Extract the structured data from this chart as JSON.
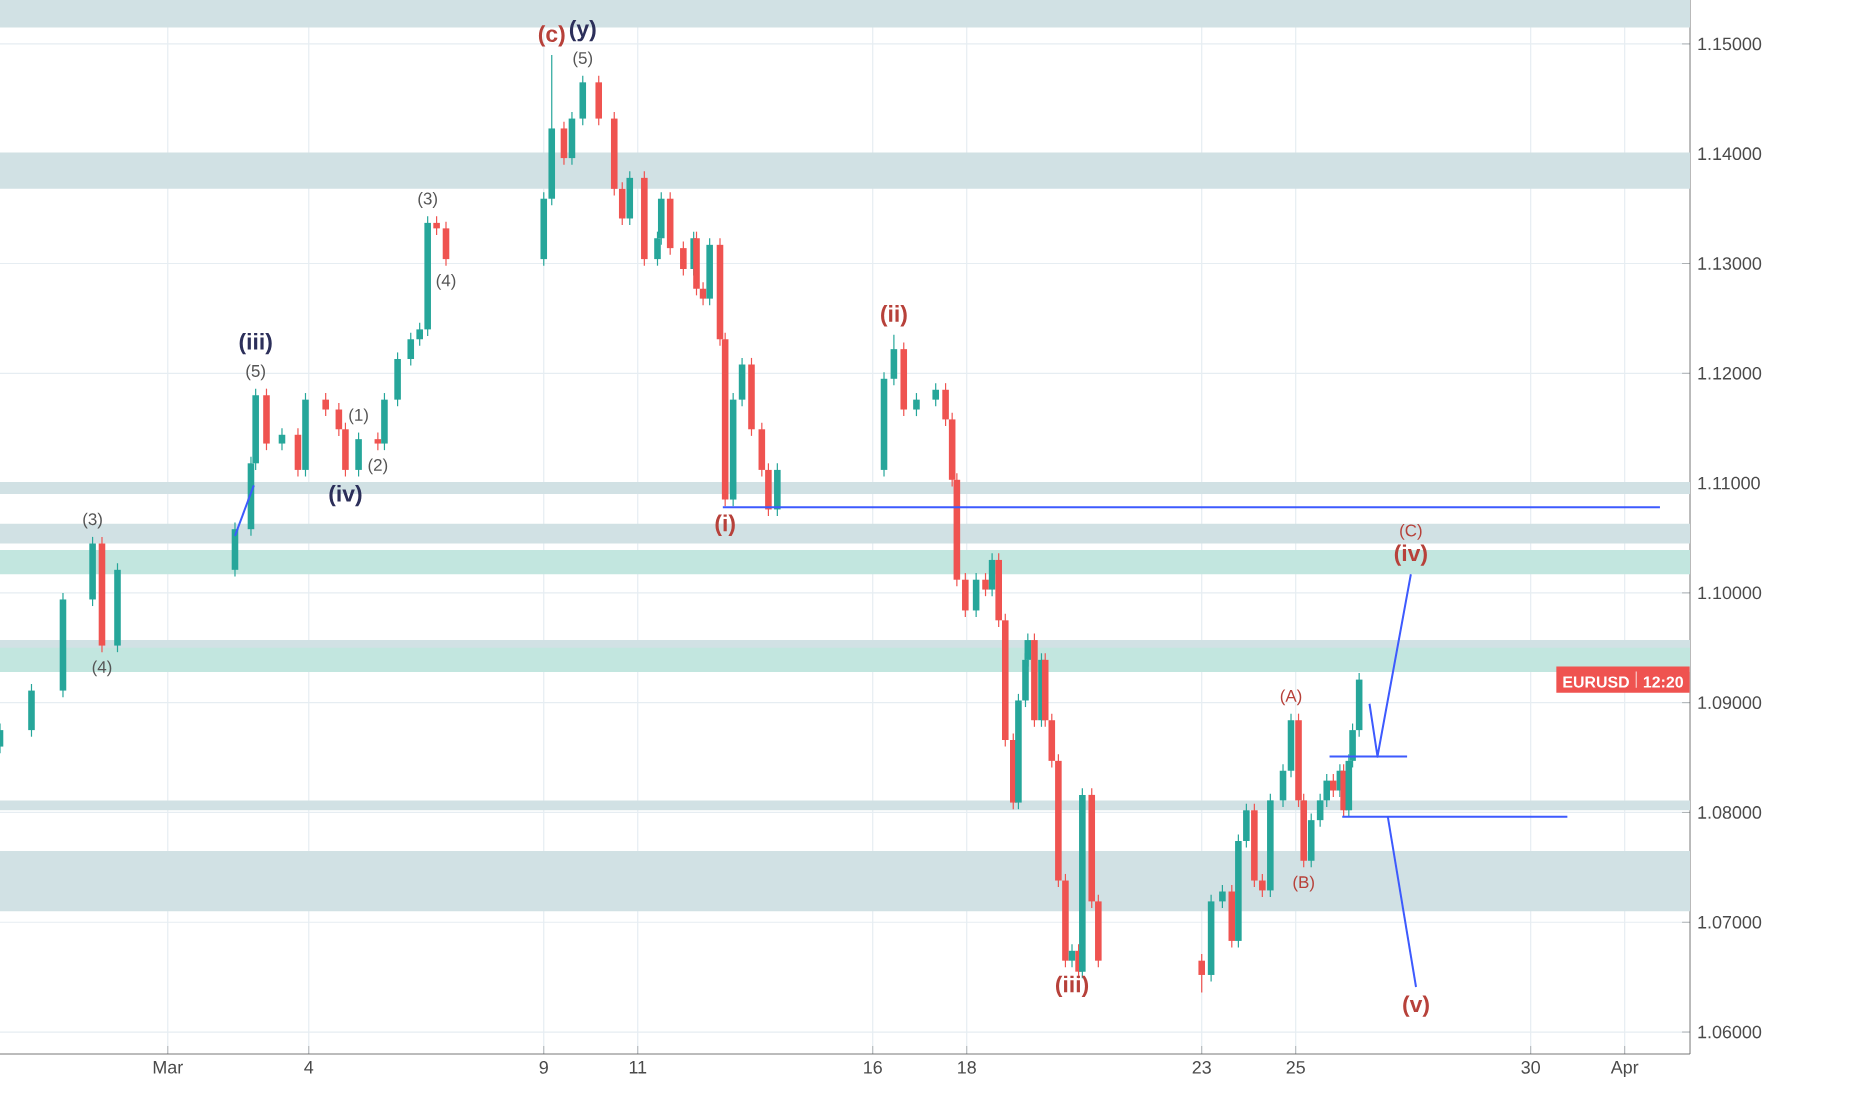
{
  "chart_data": {
    "type": "candlestick",
    "x": [
      -2.57,
      -1.9,
      -1.23,
      -0.6,
      -0.4,
      -0.07,
      2.43,
      2.77,
      2.87,
      3.1,
      3.43,
      3.77,
      3.93,
      4.36,
      4.64,
      4.78,
      5.06,
      5.47,
      5.61,
      5.89,
      6.17,
      6.36,
      6.53,
      6.72,
      6.92,
      9.0,
      9.17,
      9.43,
      9.6,
      9.83,
      10.17,
      10.5,
      10.67,
      10.83,
      11.14,
      11.42,
      11.5,
      11.69,
      11.97,
      12.19,
      12.25,
      12.39,
      12.53,
      12.75,
      12.86,
      13.03,
      13.22,
      13.42,
      13.64,
      13.78,
      13.97,
      16.24,
      16.45,
      16.66,
      16.93,
      17.34,
      17.55,
      17.69,
      17.79,
      17.97,
      18.2,
      18.4,
      18.54,
      18.68,
      18.82,
      18.99,
      19.1,
      19.25,
      19.3,
      19.44,
      19.59,
      19.67,
      19.81,
      19.95,
      20.1,
      20.24,
      20.38,
      20.46,
      20.66,
      20.8,
      23.0,
      23.2,
      23.44,
      23.64,
      23.78,
      23.95,
      24.12,
      24.29,
      24.46,
      24.73,
      24.9,
      25.06,
      25.17,
      25.33,
      25.52,
      25.66,
      25.8,
      25.94,
      26.02,
      26.13,
      26.21,
      26.35
    ],
    "ohlc": [
      [
        1.086,
        1.0881,
        1.0854,
        1.0875
      ],
      [
        1.0875,
        1.0917,
        1.0869,
        1.0911
      ],
      [
        1.0911,
        1.1,
        1.0905,
        1.0994
      ],
      [
        1.0994,
        1.1051,
        1.0988,
        1.1045
      ],
      [
        1.1045,
        1.1051,
        1.0946,
        1.0952
      ],
      [
        1.0952,
        1.1027,
        1.0946,
        1.1021
      ],
      [
        1.1021,
        1.1064,
        1.1015,
        1.1058
      ],
      [
        1.1058,
        1.1124,
        1.1052,
        1.1118
      ],
      [
        1.1118,
        1.1186,
        1.1112,
        1.118
      ],
      [
        1.118,
        1.1186,
        1.113,
        1.1136
      ],
      [
        1.1136,
        1.115,
        1.113,
        1.1144
      ],
      [
        1.1144,
        1.115,
        1.1106,
        1.1112
      ],
      [
        1.1112,
        1.1182,
        1.1106,
        1.1176
      ],
      [
        1.1176,
        1.1182,
        1.1161,
        1.1167
      ],
      [
        1.1167,
        1.1173,
        1.1143,
        1.1149
      ],
      [
        1.1149,
        1.1155,
        1.1106,
        1.1112
      ],
      [
        1.1112,
        1.1146,
        1.1106,
        1.114
      ],
      [
        1.114,
        1.1146,
        1.113,
        1.1136
      ],
      [
        1.1136,
        1.1182,
        1.113,
        1.1176
      ],
      [
        1.1176,
        1.1219,
        1.117,
        1.1213
      ],
      [
        1.1213,
        1.1237,
        1.1207,
        1.1231
      ],
      [
        1.1231,
        1.1246,
        1.1225,
        1.124
      ],
      [
        1.124,
        1.1343,
        1.1234,
        1.1337
      ],
      [
        1.1337,
        1.1343,
        1.1326,
        1.1332
      ],
      [
        1.1332,
        1.1338,
        1.1298,
        1.1304
      ],
      [
        1.1304,
        1.1365,
        1.1298,
        1.1359
      ],
      [
        1.1359,
        1.149,
        1.1353,
        1.1423
      ],
      [
        1.1423,
        1.1429,
        1.139,
        1.1396
      ],
      [
        1.1396,
        1.1438,
        1.139,
        1.1432
      ],
      [
        1.1432,
        1.1471,
        1.1426,
        1.1465
      ],
      [
        1.1465,
        1.1471,
        1.1426,
        1.1432
      ],
      [
        1.1432,
        1.1438,
        1.1362,
        1.1368
      ],
      [
        1.1368,
        1.1374,
        1.1335,
        1.1341
      ],
      [
        1.1341,
        1.1384,
        1.1335,
        1.1378
      ],
      [
        1.1378,
        1.1384,
        1.1298,
        1.1304
      ],
      [
        1.1304,
        1.1329,
        1.1298,
        1.1323
      ],
      [
        1.1323,
        1.1365,
        1.1317,
        1.1359
      ],
      [
        1.1359,
        1.1365,
        1.1308,
        1.1314
      ],
      [
        1.1314,
        1.132,
        1.1289,
        1.1295
      ],
      [
        1.1295,
        1.1329,
        1.1289,
        1.1323
      ],
      [
        1.1323,
        1.1329,
        1.1271,
        1.1277
      ],
      [
        1.1277,
        1.1283,
        1.1262,
        1.1268
      ],
      [
        1.1268,
        1.1323,
        1.1262,
        1.1317
      ],
      [
        1.1317,
        1.1323,
        1.1225,
        1.1231
      ],
      [
        1.1231,
        1.1237,
        1.1079,
        1.1085
      ],
      [
        1.1085,
        1.1182,
        1.1079,
        1.1176
      ],
      [
        1.1176,
        1.1214,
        1.117,
        1.1208
      ],
      [
        1.1208,
        1.1214,
        1.1143,
        1.1149
      ],
      [
        1.1149,
        1.1155,
        1.1106,
        1.1112
      ],
      [
        1.1112,
        1.1118,
        1.107,
        1.1076
      ],
      [
        1.1076,
        1.1118,
        1.107,
        1.1112
      ],
      [
        1.1112,
        1.1201,
        1.1106,
        1.1195
      ],
      [
        1.1195,
        1.1235,
        1.1189,
        1.1222
      ],
      [
        1.1222,
        1.1228,
        1.1161,
        1.1167
      ],
      [
        1.1167,
        1.1182,
        1.1161,
        1.1176
      ],
      [
        1.1176,
        1.1191,
        1.117,
        1.1185
      ],
      [
        1.1185,
        1.1191,
        1.1152,
        1.1158
      ],
      [
        1.1158,
        1.1164,
        1.1097,
        1.1103
      ],
      [
        1.1103,
        1.1109,
        1.1006,
        1.1012
      ],
      [
        1.1012,
        1.1018,
        1.0978,
        1.0984
      ],
      [
        1.0984,
        1.1018,
        1.0978,
        1.1012
      ],
      [
        1.1012,
        1.1018,
        1.0997,
        1.1003
      ],
      [
        1.1003,
        1.1036,
        1.0997,
        1.103
      ],
      [
        1.103,
        1.1036,
        1.0969,
        1.0975
      ],
      [
        1.0975,
        1.0981,
        1.086,
        1.0866
      ],
      [
        1.0866,
        1.0872,
        1.0803,
        1.0809
      ],
      [
        1.0809,
        1.0908,
        1.0803,
        1.0902
      ],
      [
        1.0902,
        1.0945,
        1.0896,
        1.0939
      ],
      [
        1.0939,
        1.0963,
        1.0933,
        1.0957
      ],
      [
        1.0957,
        1.0963,
        1.0878,
        1.0884
      ],
      [
        1.0884,
        1.0945,
        1.0878,
        1.0939
      ],
      [
        1.0939,
        1.0945,
        1.0878,
        1.0884
      ],
      [
        1.0884,
        1.089,
        1.0841,
        1.0847
      ],
      [
        1.0847,
        1.0853,
        1.0732,
        1.0738
      ],
      [
        1.0738,
        1.0744,
        1.0659,
        1.0665
      ],
      [
        1.0665,
        1.068,
        1.0659,
        1.0674
      ],
      [
        1.0674,
        1.068,
        1.0649,
        1.0655
      ],
      [
        1.0655,
        1.0822,
        1.0649,
        1.0816
      ],
      [
        1.0816,
        1.0822,
        1.0713,
        1.0719
      ],
      [
        1.0719,
        1.0725,
        1.0659,
        1.0665
      ],
      [
        1.0665,
        1.0671,
        1.0636,
        1.0652
      ],
      [
        1.0652,
        1.0725,
        1.0646,
        1.0719
      ],
      [
        1.0719,
        1.0734,
        1.0713,
        1.0728
      ],
      [
        1.0728,
        1.0734,
        1.0677,
        1.0683
      ],
      [
        1.0683,
        1.078,
        1.0677,
        1.0774
      ],
      [
        1.0774,
        1.0808,
        1.0768,
        1.0802
      ],
      [
        1.0802,
        1.0808,
        1.0732,
        1.0738
      ],
      [
        1.0738,
        1.0744,
        1.0723,
        1.0729
      ],
      [
        1.0729,
        1.0817,
        1.0723,
        1.0811
      ],
      [
        1.0811,
        1.0844,
        1.0805,
        1.0838
      ],
      [
        1.0838,
        1.089,
        1.0832,
        1.0884
      ],
      [
        1.0884,
        1.089,
        1.0805,
        1.0811
      ],
      [
        1.0811,
        1.0817,
        1.075,
        1.0756
      ],
      [
        1.0756,
        1.0799,
        1.075,
        1.0793
      ],
      [
        1.0793,
        1.0817,
        1.0787,
        1.0811
      ],
      [
        1.0811,
        1.0835,
        1.0805,
        1.0829
      ],
      [
        1.0829,
        1.0835,
        1.0814,
        1.082
      ],
      [
        1.082,
        1.0844,
        1.0814,
        1.0838
      ],
      [
        1.0838,
        1.0844,
        1.0796,
        1.0802
      ],
      [
        1.0802,
        1.0853,
        1.0796,
        1.0847
      ],
      [
        1.0847,
        1.0881,
        1.0841,
        1.0875
      ],
      [
        1.0875,
        1.0927,
        1.0869,
        1.0921
      ]
    ],
    "series": [
      {
        "type": "line",
        "color": "#3d5afe",
        "x": [
          2.43,
          2.83
        ],
        "values": [
          1.1052,
          1.1098
        ]
      },
      {
        "type": "line",
        "color": "#3d5afe",
        "x": [
          12.81,
          32.75
        ],
        "values": [
          1.1078,
          1.1078
        ]
      },
      {
        "type": "line",
        "color": "#3d5afe",
        "x": [
          25.72,
          27.37
        ],
        "values": [
          1.0851,
          1.0851
        ]
      },
      {
        "type": "line",
        "color": "#3d5afe",
        "x": [
          25.99,
          30.78
        ],
        "values": [
          1.0796,
          1.0796
        ]
      },
      {
        "type": "line",
        "color": "#3d5afe",
        "x": [
          26.57,
          26.74,
          27.45
        ],
        "values": [
          1.0899,
          1.0851,
          1.1017
        ]
      },
      {
        "type": "line",
        "color": "#3d5afe",
        "x": [
          26.96,
          27.56
        ],
        "values": [
          1.0796,
          1.0641
        ]
      }
    ],
    "bands": [
      {
        "axis": "y",
        "from": 1.1515,
        "to": 1.154,
        "color": "#d1e1e4"
      },
      {
        "axis": "y",
        "from": 1.1368,
        "to": 1.1401,
        "color": "#d1e1e4"
      },
      {
        "axis": "y",
        "from": 1.109,
        "to": 1.1101,
        "color": "#d1e1e4"
      },
      {
        "axis": "y",
        "from": 1.1045,
        "to": 1.1063,
        "color": "#d1e1e4"
      },
      {
        "axis": "y",
        "from": 1.1017,
        "to": 1.1039,
        "color": "#c2e6df"
      },
      {
        "axis": "y",
        "from": 1.0948,
        "to": 1.0957,
        "color": "#d1e1e4"
      },
      {
        "axis": "y",
        "from": 1.0928,
        "to": 1.095,
        "color": "#c2e6df"
      },
      {
        "axis": "y",
        "from": 1.0802,
        "to": 1.0811,
        "color": "#d1e1e4"
      },
      {
        "axis": "y",
        "from": 1.071,
        "to": 1.0765,
        "color": "#d1e1e4"
      }
    ],
    "annotations": [
      {
        "text": "(5)",
        "x": 9.83,
        "y": 1.1471
      },
      {
        "text": "(y)",
        "x": 9.83,
        "y": 1.1471
      },
      {
        "text": "(c)",
        "x": 9.17,
        "y": 1.149
      },
      {
        "text": "(3)",
        "x": 6.53,
        "y": 1.1343
      },
      {
        "text": "(4)",
        "x": 6.92,
        "y": 1.1298
      },
      {
        "text": "(5)",
        "x": 2.87,
        "y": 1.1186
      },
      {
        "text": "(iii)",
        "x": 2.87,
        "y": 1.1186
      },
      {
        "text": "(1)",
        "x": 5.06,
        "y": 1.1146
      },
      {
        "text": "(2)",
        "x": 5.47,
        "y": 1.113
      },
      {
        "text": "(iv)",
        "x": 4.78,
        "y": 1.1106
      },
      {
        "text": "(3)",
        "x": -0.6,
        "y": 1.1051
      },
      {
        "text": "(4)",
        "x": -0.4,
        "y": 1.0946
      },
      {
        "text": "(i)",
        "x": 12.86,
        "y": 1.1079
      },
      {
        "text": "(ii)",
        "x": 16.45,
        "y": 1.1235
      },
      {
        "text": "(iii)",
        "x": 20.24,
        "y": 1.0659
      },
      {
        "text": "(A)",
        "x": 24.9,
        "y": 1.089
      },
      {
        "text": "(B)",
        "x": 25.17,
        "y": 1.075
      },
      {
        "text": "(iv)",
        "x": 27.45,
        "y": 1.1017
      },
      {
        "text": "(C)",
        "x": 27.45,
        "y": 1.1017
      },
      {
        "text": "(v)",
        "x": 27.56,
        "y": 1.0641
      },
      "EURUSD",
      "12:20"
    ],
    "xlim": [
      -2.57,
      33.39
    ],
    "ylim": [
      1.058,
      1.154
    ],
    "xticks": [
      {
        "value": 1,
        "label": "Mar"
      },
      4,
      9,
      11,
      16,
      18,
      23,
      25,
      30,
      {
        "value": 32,
        "label": "Apr"
      }
    ],
    "yticks": [
      {
        "value": 1.06,
        "label": "1.06000"
      },
      {
        "value": 1.07,
        "label": "1.07000"
      },
      {
        "value": 1.08,
        "label": "1.08000"
      },
      {
        "value": 1.09,
        "label": "1.09000"
      },
      {
        "value": 1.1,
        "label": "1.10000"
      },
      {
        "value": 1.11,
        "label": "1.11000"
      },
      {
        "value": 1.12,
        "label": "1.12000"
      },
      {
        "value": 1.13,
        "label": "1.13000"
      },
      {
        "value": 1.14,
        "label": "1.14000"
      },
      {
        "value": 1.15,
        "label": "1.15000"
      }
    ],
    "grid": true
  }
}
